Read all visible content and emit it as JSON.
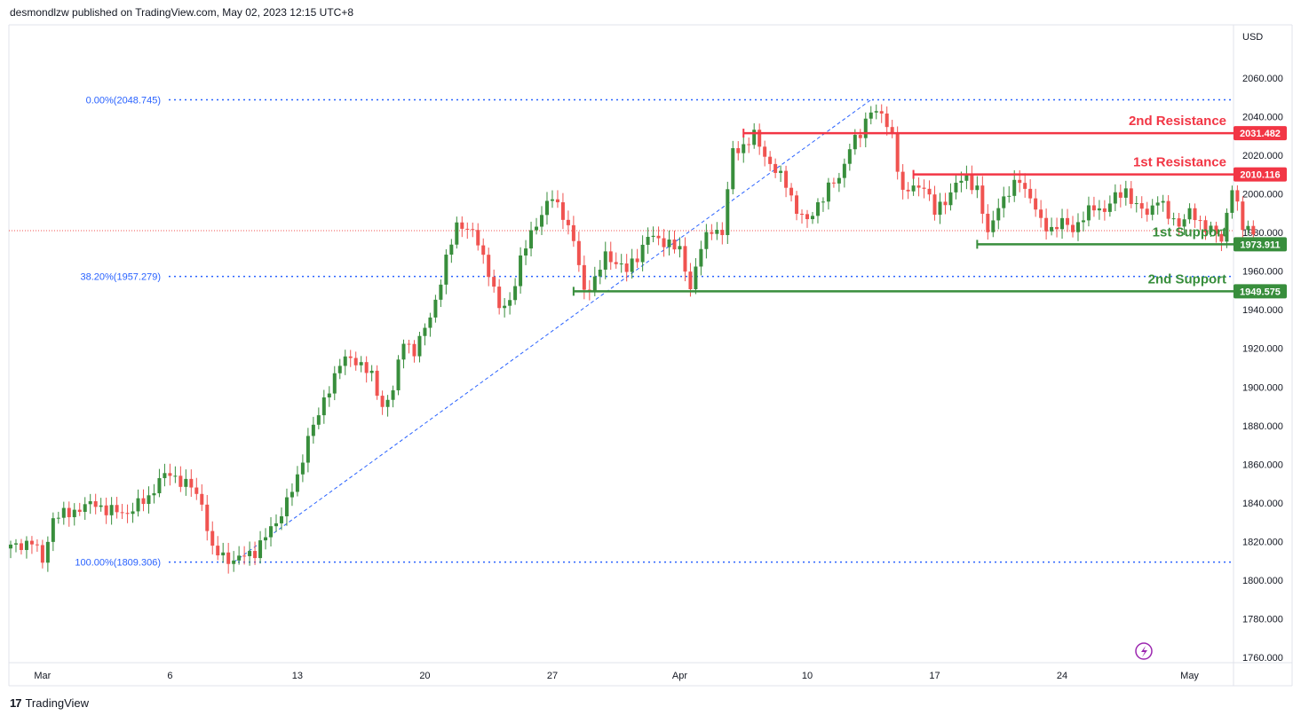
{
  "header": {
    "publish_text": "desmondlzw published on TradingView.com, May 02, 2023 12:15 UTC+8"
  },
  "footer": {
    "logo_text": "TradingView",
    "logo_mark": "17"
  },
  "chart_data": {
    "type": "candlestick",
    "currency": "USD",
    "ylim": [
      1757,
      2080
    ],
    "y_ticks": [
      2060,
      2040,
      2020,
      2000,
      1980,
      1960,
      1940,
      1920,
      1900,
      1880,
      1860,
      1840,
      1820,
      1800,
      1780,
      1760
    ],
    "y_tick_labels": [
      "2060.000",
      "2040.000",
      "2020.000",
      "2000.000",
      "1980.000",
      "1960.000",
      "1940.000",
      "1920.000",
      "1900.000",
      "1880.000",
      "1860.000",
      "1840.000",
      "1820.000",
      "1800.000",
      "1780.000",
      "1760.000"
    ],
    "x_ticks": [
      {
        "label": "Mar",
        "idx": 6
      },
      {
        "label": "6",
        "idx": 30
      },
      {
        "label": "13",
        "idx": 54
      },
      {
        "label": "20",
        "idx": 78
      },
      {
        "label": "27",
        "idx": 102
      },
      {
        "label": "Apr",
        "idx": 126
      },
      {
        "label": "10",
        "idx": 150
      },
      {
        "label": "17",
        "idx": 174
      },
      {
        "label": "24",
        "idx": 198
      },
      {
        "label": "May",
        "idx": 222
      }
    ],
    "candles_per_day": 4,
    "close_points": [
      [
        0,
        1817
      ],
      [
        4,
        1820
      ],
      [
        6,
        1810
      ],
      [
        8,
        1832
      ],
      [
        12,
        1836
      ],
      [
        16,
        1840
      ],
      [
        18,
        1836
      ],
      [
        22,
        1835
      ],
      [
        26,
        1843
      ],
      [
        28,
        1852
      ],
      [
        30,
        1855
      ],
      [
        34,
        1848
      ],
      [
        36,
        1840
      ],
      [
        38,
        1815
      ],
      [
        42,
        1810
      ],
      [
        46,
        1815
      ],
      [
        50,
        1830
      ],
      [
        54,
        1852
      ],
      [
        56,
        1875
      ],
      [
        58,
        1885
      ],
      [
        60,
        1900
      ],
      [
        62,
        1912
      ],
      [
        64,
        1915
      ],
      [
        66,
        1912
      ],
      [
        68,
        1905
      ],
      [
        70,
        1890
      ],
      [
        72,
        1898
      ],
      [
        74,
        1925
      ],
      [
        76,
        1918
      ],
      [
        78,
        1930
      ],
      [
        80,
        1945
      ],
      [
        82,
        1965
      ],
      [
        84,
        1985
      ],
      [
        86,
        1982
      ],
      [
        88,
        1975
      ],
      [
        90,
        1960
      ],
      [
        92,
        1940
      ],
      [
        94,
        1945
      ],
      [
        96,
        1965
      ],
      [
        98,
        1980
      ],
      [
        100,
        1990
      ],
      [
        102,
        1998
      ],
      [
        104,
        1990
      ],
      [
        106,
        1975
      ],
      [
        108,
        1950
      ],
      [
        110,
        1955
      ],
      [
        112,
        1968
      ],
      [
        114,
        1965
      ],
      [
        116,
        1960
      ],
      [
        118,
        1968
      ],
      [
        120,
        1978
      ],
      [
        122,
        1976
      ],
      [
        124,
        1975
      ],
      [
        126,
        1970
      ],
      [
        128,
        1952
      ],
      [
        130,
        1972
      ],
      [
        132,
        1982
      ],
      [
        134,
        1980
      ],
      [
        136,
        2022
      ],
      [
        138,
        2025
      ],
      [
        140,
        2030
      ],
      [
        142,
        2020
      ],
      [
        144,
        2012
      ],
      [
        146,
        2005
      ],
      [
        148,
        1992
      ],
      [
        150,
        1985
      ],
      [
        152,
        1995
      ],
      [
        154,
        2003
      ],
      [
        156,
        2008
      ],
      [
        158,
        2025
      ],
      [
        160,
        2030
      ],
      [
        162,
        2045
      ],
      [
        164,
        2040
      ],
      [
        166,
        2030
      ],
      [
        168,
        2000
      ],
      [
        170,
        2003
      ],
      [
        172,
        2005
      ],
      [
        174,
        1990
      ],
      [
        176,
        1997
      ],
      [
        178,
        2005
      ],
      [
        180,
        2008
      ],
      [
        182,
        2003
      ],
      [
        184,
        1978
      ],
      [
        186,
        1995
      ],
      [
        188,
        2000
      ],
      [
        190,
        2008
      ],
      [
        192,
        1998
      ],
      [
        194,
        1985
      ],
      [
        196,
        1982
      ],
      [
        198,
        1985
      ],
      [
        200,
        1982
      ],
      [
        202,
        1988
      ],
      [
        204,
        1993
      ],
      [
        206,
        1992
      ],
      [
        208,
        1998
      ],
      [
        210,
        2002
      ],
      [
        212,
        1993
      ],
      [
        214,
        1990
      ],
      [
        216,
        1998
      ],
      [
        218,
        1988
      ],
      [
        220,
        1985
      ],
      [
        222,
        1990
      ],
      [
        224,
        1985
      ],
      [
        226,
        1982
      ],
      [
        228,
        1975
      ],
      [
        230,
        2005
      ],
      [
        232,
        1982
      ],
      [
        234,
        1981
      ]
    ],
    "fib_levels": [
      {
        "label": "0.00%(2048.745)",
        "value": 2048.745
      },
      {
        "label": "38.20%(1957.279)",
        "value": 1957.279
      },
      {
        "label": "100.00%(1809.306)",
        "value": 1809.306
      }
    ],
    "fib_trendline": [
      {
        "idx": 42,
        "value": 1809.306
      },
      {
        "idx": 162,
        "value": 2048.745
      }
    ],
    "levels": [
      {
        "name": "2nd Resistance",
        "value": 2031.482,
        "value_label": "2031.482",
        "color": "#f23645",
        "start_idx": 138
      },
      {
        "name": "1st Resistance",
        "value": 2010.116,
        "value_label": "2010.116",
        "color": "#f23645",
        "start_idx": 170
      },
      {
        "name": "1st Support",
        "value": 1973.911,
        "value_label": "1973.911",
        "color": "#388e3c",
        "start_idx": 182
      },
      {
        "name": "2nd Support",
        "value": 1949.575,
        "value_label": "1949.575",
        "color": "#388e3c",
        "start_idx": 106
      }
    ],
    "current_price": 1981,
    "colors": {
      "up": "#26a69a",
      "up_body": "#388e3c",
      "down": "#f05350",
      "fib": "#2962ff",
      "axis_text": "#131722"
    }
  }
}
